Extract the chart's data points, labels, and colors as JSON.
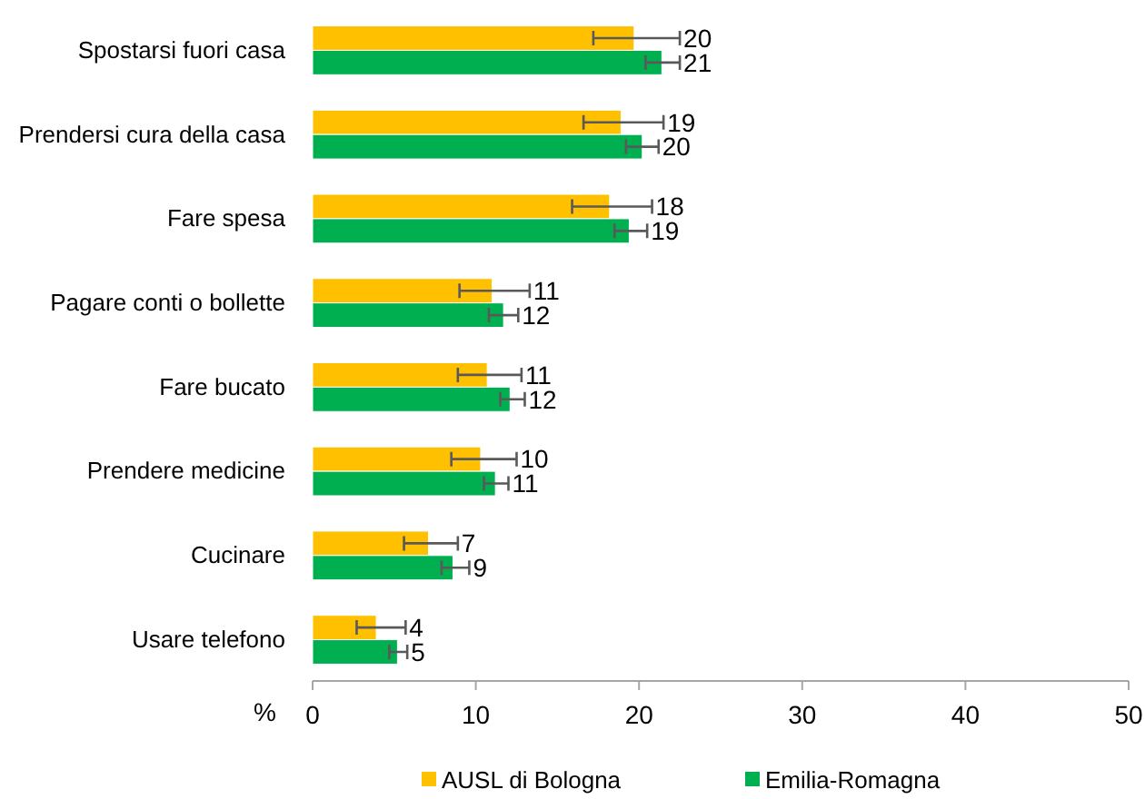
{
  "chart_data": {
    "type": "bar",
    "orientation": "horizontal",
    "xlabel": "%",
    "categories": [
      "Spostarsi fuori casa",
      "Prendersi cura della casa",
      "Fare spesa",
      "Pagare conti o bollette",
      "Fare bucato",
      "Prendere medicine",
      "Cucinare",
      "Usare telefono"
    ],
    "series": [
      {
        "name": "AUSL di Bologna",
        "color": "#ffc000",
        "values": [
          19.7,
          18.9,
          18.2,
          11.0,
          10.7,
          10.3,
          7.1,
          3.9
        ],
        "errors": [
          [
            17.2,
            22.5
          ],
          [
            16.6,
            21.5
          ],
          [
            15.9,
            20.8
          ],
          [
            9.0,
            13.3
          ],
          [
            8.9,
            12.8
          ],
          [
            8.5,
            12.5
          ],
          [
            5.6,
            8.9
          ],
          [
            2.7,
            5.7
          ]
        ],
        "value_labels": [
          "20",
          "19",
          "18",
          "11",
          "11",
          "10",
          "7",
          "4"
        ]
      },
      {
        "name": "Emilia-Romagna",
        "color": "#00b050",
        "values": [
          21.4,
          20.2,
          19.4,
          11.7,
          12.1,
          11.2,
          8.6,
          5.2
        ],
        "errors": [
          [
            20.4,
            22.5
          ],
          [
            19.2,
            21.2
          ],
          [
            18.5,
            20.5
          ],
          [
            10.8,
            12.6
          ],
          [
            11.5,
            13.0
          ],
          [
            10.5,
            12.0
          ],
          [
            7.9,
            9.6
          ],
          [
            4.7,
            5.8
          ]
        ],
        "value_labels": [
          "21",
          "20",
          "19",
          "12",
          "12",
          "11",
          "9",
          "5"
        ]
      }
    ],
    "xlim": [
      0,
      50
    ],
    "xticks": [
      0,
      10,
      20,
      30,
      40,
      50
    ],
    "grid": false,
    "legend": "bottom"
  }
}
